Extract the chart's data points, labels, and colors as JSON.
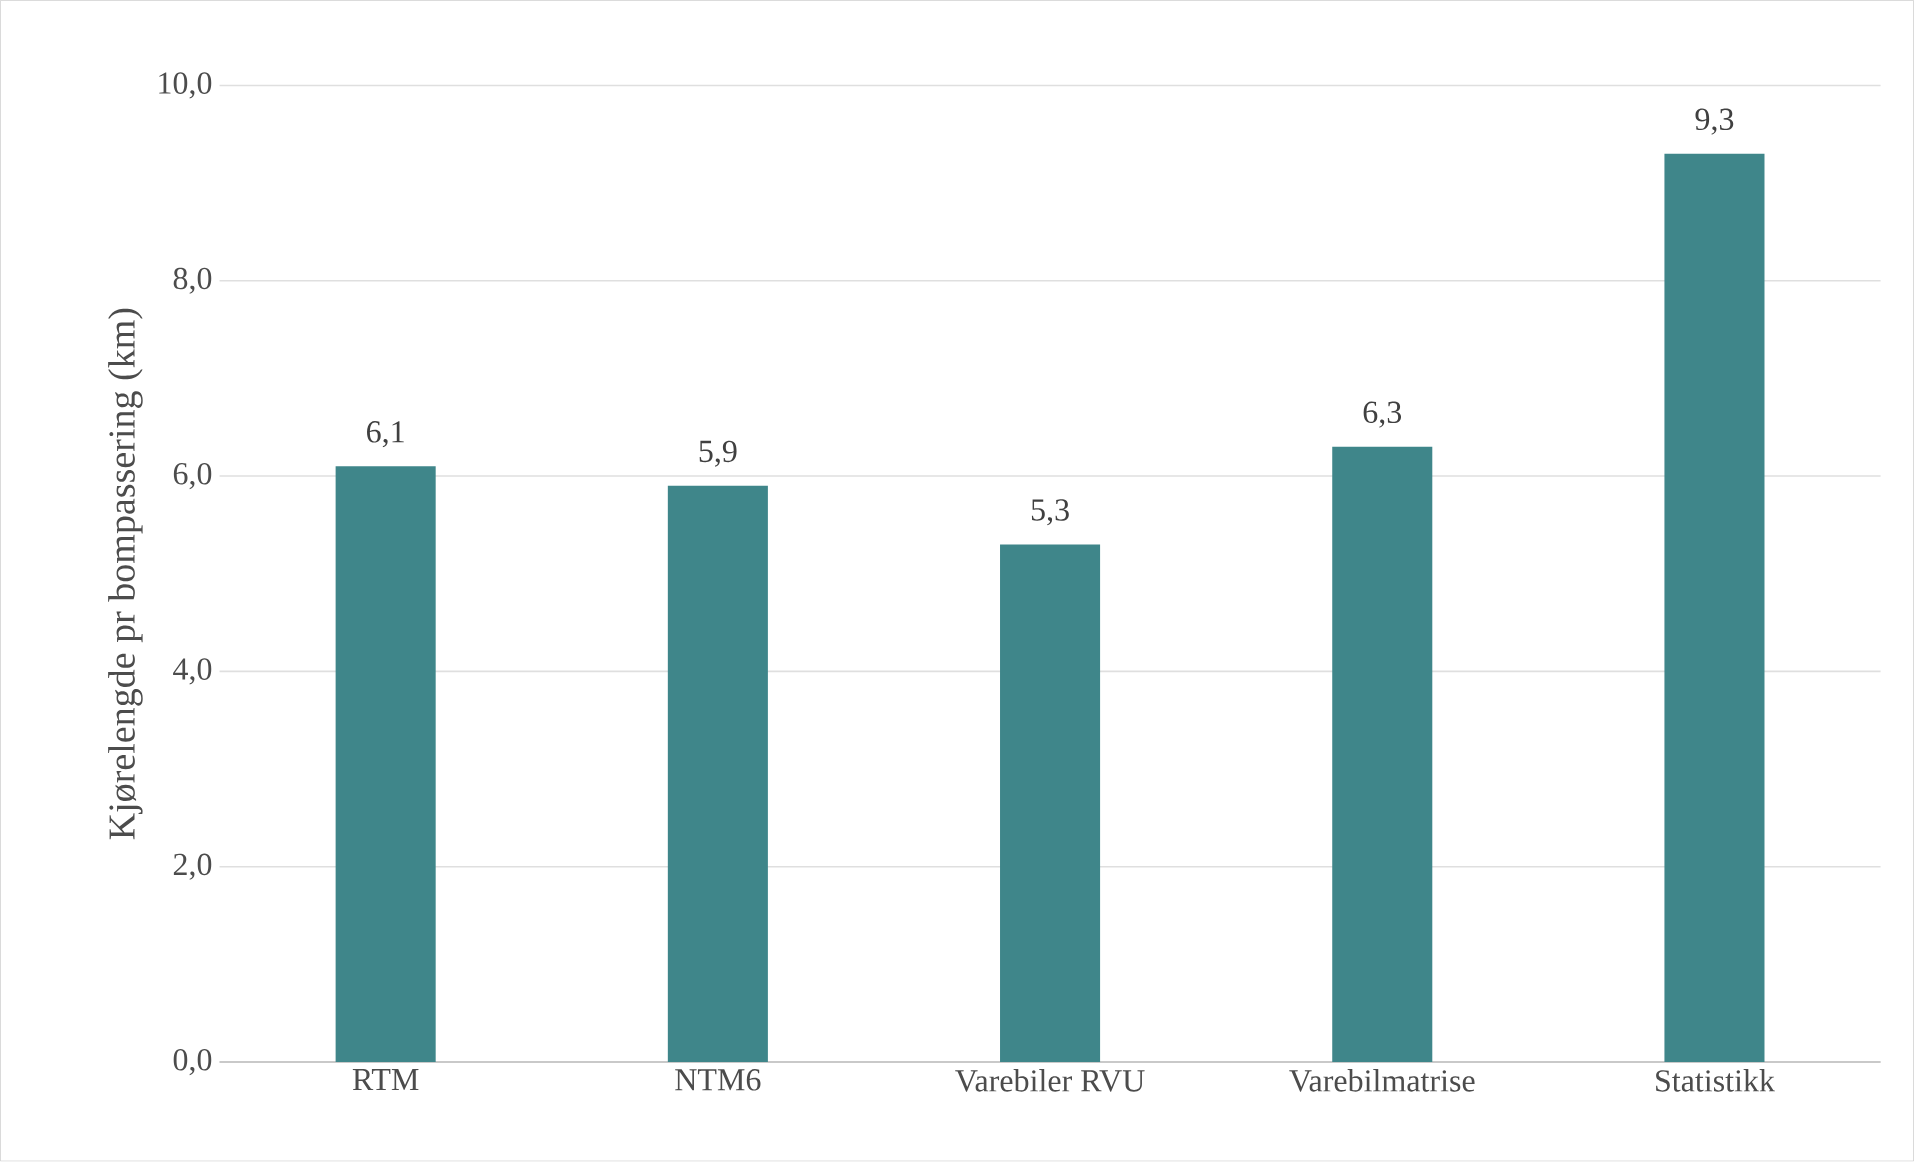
{
  "chart_data": {
    "type": "bar",
    "ylabel": "Kjørelengde pr bompassering (km)",
    "categories": [
      "RTM",
      "NTM6",
      "Varebiler RVU",
      "Varebilmatrise",
      "Statistikk"
    ],
    "values": [
      6.1,
      5.9,
      5.3,
      6.3,
      9.3
    ],
    "value_labels": [
      "6,1",
      "5,9",
      "5,3",
      "6,3",
      "9,3"
    ],
    "color": "#3f868a",
    "ylim": [
      0,
      10
    ],
    "yticks": [
      {
        "value": 0,
        "label": "0,0"
      },
      {
        "value": 2,
        "label": "2,0"
      },
      {
        "value": 4,
        "label": "4,0"
      },
      {
        "value": 6,
        "label": "6,0"
      },
      {
        "value": 8,
        "label": "8,0"
      },
      {
        "value": 10,
        "label": "10,0"
      }
    ],
    "grid": "y"
  }
}
